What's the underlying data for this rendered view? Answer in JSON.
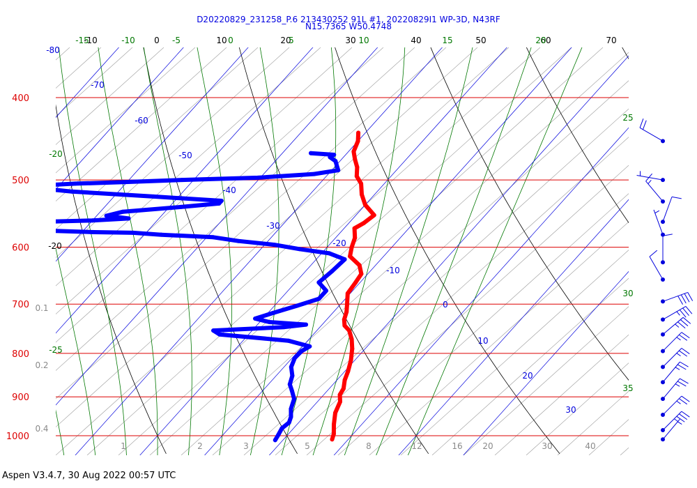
{
  "title_line1": "D20220829_231258_P.6 213430252 91L #1, 20220829I1 WP-3D, N43RF",
  "title_line2": "N15.7365 W50.4748",
  "footer": "Aspen V3.4.7, 30 Aug 2022  00:57 UTC",
  "colors": {
    "isobar": "#dd0000",
    "isotherm": "#000000",
    "dry_adiabat": "#000000",
    "moist_adiabat": "#007700",
    "mixing_ratio": "#0000dd",
    "temperature": "#ff0000",
    "dewpoint": "#0000ff",
    "wind_barb": "#0000dd"
  },
  "chart_data": {
    "type": "skew-t",
    "pressure_axis": {
      "levels": [
        400,
        500,
        600,
        700,
        800,
        900,
        1000
      ],
      "range_hPa": [
        1000,
        350
      ],
      "scale": "log"
    },
    "temperature_axis": {
      "tick_labels": [
        "-10",
        "0",
        "10",
        "20",
        "30",
        "40",
        "50",
        "60",
        "70"
      ],
      "unit": "°C"
    },
    "isotherm_labels": [
      {
        "text": "-80"
      },
      {
        "text": "-70"
      },
      {
        "text": "-60"
      },
      {
        "text": "-50"
      },
      {
        "text": "-40"
      },
      {
        "text": "-30"
      },
      {
        "text": "-20"
      },
      {
        "text": "-10"
      },
      {
        "text": "0"
      },
      {
        "text": "10"
      },
      {
        "text": "20"
      },
      {
        "text": "30"
      }
    ],
    "dry_adiabat_labels": [
      {
        "text": "-15"
      },
      {
        "text": "-10"
      },
      {
        "text": "-5"
      },
      {
        "text": "0"
      },
      {
        "text": "5"
      },
      {
        "text": "10"
      },
      {
        "text": "15"
      },
      {
        "text": "20"
      }
    ],
    "moist_adiabat_labels": [
      {
        "text": "-20"
      },
      {
        "text": "-25"
      },
      {
        "text": "25"
      },
      {
        "text": "30"
      },
      {
        "text": "35"
      }
    ],
    "mixing_ratio_labels": [
      {
        "text": "0.1"
      },
      {
        "text": "0.2"
      },
      {
        "text": "0.4"
      },
      {
        "text": "1"
      },
      {
        "text": "2"
      },
      {
        "text": "3"
      },
      {
        "text": "5"
      },
      {
        "text": "8"
      },
      {
        "text": "12"
      },
      {
        "text": "16"
      },
      {
        "text": "20"
      },
      {
        "text": "30"
      },
      {
        "text": "40"
      }
    ],
    "temperature_profile": [
      {
        "p": 1010,
        "t": 27.5
      },
      {
        "p": 995,
        "t": 27.0
      },
      {
        "p": 970,
        "t": 25.7
      },
      {
        "p": 940,
        "t": 24.3
      },
      {
        "p": 912,
        "t": 23.5
      },
      {
        "p": 895,
        "t": 22.5
      },
      {
        "p": 880,
        "t": 22.2
      },
      {
        "p": 860,
        "t": 21.2
      },
      {
        "p": 840,
        "t": 20.5
      },
      {
        "p": 815,
        "t": 19.4
      },
      {
        "p": 790,
        "t": 18.0
      },
      {
        "p": 770,
        "t": 16.6
      },
      {
        "p": 752,
        "t": 15.0
      },
      {
        "p": 742,
        "t": 13.6
      },
      {
        "p": 730,
        "t": 12.7
      },
      {
        "p": 715,
        "t": 12.0
      },
      {
        "p": 700,
        "t": 11.0
      },
      {
        "p": 680,
        "t": 9.6
      },
      {
        "p": 660,
        "t": 9.3
      },
      {
        "p": 645,
        "t": 9.0
      },
      {
        "p": 630,
        "t": 7.5
      },
      {
        "p": 615,
        "t": 4.8
      },
      {
        "p": 600,
        "t": 3.8
      },
      {
        "p": 585,
        "t": 3.0
      },
      {
        "p": 570,
        "t": 1.6
      },
      {
        "p": 562,
        "t": 2.3
      },
      {
        "p": 550,
        "t": 2.8
      },
      {
        "p": 535,
        "t": 0.0
      },
      {
        "p": 520,
        "t": -2.0
      },
      {
        "p": 505,
        "t": -3.6
      },
      {
        "p": 495,
        "t": -5.3
      },
      {
        "p": 483,
        "t": -6.5
      },
      {
        "p": 473,
        "t": -7.9
      },
      {
        "p": 463,
        "t": -9.2
      },
      {
        "p": 450,
        "t": -10.0
      },
      {
        "p": 440,
        "t": -11.1
      }
    ],
    "dewpoint_profile": [
      {
        "p": 1012,
        "td": 18.8
      },
      {
        "p": 1000,
        "td": 18.6
      },
      {
        "p": 980,
        "td": 18.2
      },
      {
        "p": 965,
        "td": 18.5
      },
      {
        "p": 950,
        "td": 18.0
      },
      {
        "p": 930,
        "td": 16.9
      },
      {
        "p": 905,
        "td": 16.0
      },
      {
        "p": 885,
        "td": 14.5
      },
      {
        "p": 870,
        "td": 13.3
      },
      {
        "p": 850,
        "td": 12.5
      },
      {
        "p": 830,
        "td": 11.1
      },
      {
        "p": 810,
        "td": 10.4
      },
      {
        "p": 795,
        "td": 10.5
      },
      {
        "p": 785,
        "td": 11.1
      },
      {
        "p": 773,
        "td": 7.0
      },
      {
        "p": 760,
        "td": -4.5
      },
      {
        "p": 752,
        "td": -6.0
      },
      {
        "p": 745,
        "td": 4.5
      },
      {
        "p": 740,
        "td": 7.5
      },
      {
        "p": 735,
        "td": 1.5
      },
      {
        "p": 728,
        "td": -1.2
      },
      {
        "p": 717,
        "td": 0.8
      },
      {
        "p": 703,
        "td": 3.5
      },
      {
        "p": 690,
        "td": 5.9
      },
      {
        "p": 675,
        "td": 5.9
      },
      {
        "p": 660,
        "td": 3.6
      },
      {
        "p": 640,
        "td": 4.1
      },
      {
        "p": 620,
        "td": 4.4
      },
      {
        "p": 610,
        "td": 1.2
      },
      {
        "p": 603,
        "td": -4.0
      },
      {
        "p": 596,
        "td": -8.5
      },
      {
        "p": 590,
        "td": -14.6
      },
      {
        "p": 584,
        "td": -19.0
      },
      {
        "p": 580,
        "td": -27.4
      },
      {
        "p": 577,
        "td": -32.0
      },
      {
        "p": 576,
        "td": -38.1
      },
      {
        "p": 573,
        "td": -48.0
      },
      {
        "p": 570,
        "td": -56.0
      },
      {
        "p": 568,
        "td": -61.5
      },
      {
        "p": 562,
        "td": -55.0
      },
      {
        "p": 558,
        "td": -40.0
      },
      {
        "p": 555,
        "td": -34.7
      },
      {
        "p": 551,
        "td": -38.5
      },
      {
        "p": 545,
        "td": -36.5
      },
      {
        "p": 538,
        "td": -28.2
      },
      {
        "p": 533,
        "td": -22.8
      },
      {
        "p": 529,
        "td": -22.8
      },
      {
        "p": 523,
        "td": -33.9
      },
      {
        "p": 516,
        "td": -47.2
      },
      {
        "p": 511,
        "td": -53.2
      },
      {
        "p": 507,
        "td": -52.0
      },
      {
        "p": 505,
        "td": -47.8
      },
      {
        "p": 503,
        "td": -40.6
      },
      {
        "p": 500,
        "td": -31.8
      },
      {
        "p": 497,
        "td": -20.4
      },
      {
        "p": 492,
        "td": -12.2
      },
      {
        "p": 487,
        "td": -9.0
      },
      {
        "p": 475,
        "td": -10.7
      },
      {
        "p": 470,
        "td": -12.1
      },
      {
        "p": 467,
        "td": -11.8
      },
      {
        "p": 465,
        "td": -15.6
      }
    ],
    "wind_barbs": [
      {
        "p": 450,
        "speed_kt": 20,
        "dir_deg": 300
      },
      {
        "p": 500,
        "speed_kt": 5,
        "dir_deg": 280
      },
      {
        "p": 530,
        "speed_kt": 15,
        "dir_deg": 320
      },
      {
        "p": 560,
        "speed_kt": 10,
        "dir_deg": 20
      },
      {
        "p": 580,
        "speed_kt": 5,
        "dir_deg": 340
      },
      {
        "p": 625,
        "speed_kt": 10,
        "dir_deg": 0
      },
      {
        "p": 655,
        "speed_kt": 10,
        "dir_deg": 330
      },
      {
        "p": 695,
        "speed_kt": 40,
        "dir_deg": 70
      },
      {
        "p": 730,
        "speed_kt": 35,
        "dir_deg": 60
      },
      {
        "p": 760,
        "speed_kt": 35,
        "dir_deg": 50
      },
      {
        "p": 795,
        "speed_kt": 25,
        "dir_deg": 45
      },
      {
        "p": 830,
        "speed_kt": 25,
        "dir_deg": 45
      },
      {
        "p": 865,
        "speed_kt": 25,
        "dir_deg": 40
      },
      {
        "p": 905,
        "speed_kt": 25,
        "dir_deg": 40
      },
      {
        "p": 945,
        "speed_kt": 25,
        "dir_deg": 45
      },
      {
        "p": 985,
        "speed_kt": 35,
        "dir_deg": 45
      },
      {
        "p": 1010,
        "speed_kt": 5,
        "dir_deg": 40
      }
    ]
  }
}
